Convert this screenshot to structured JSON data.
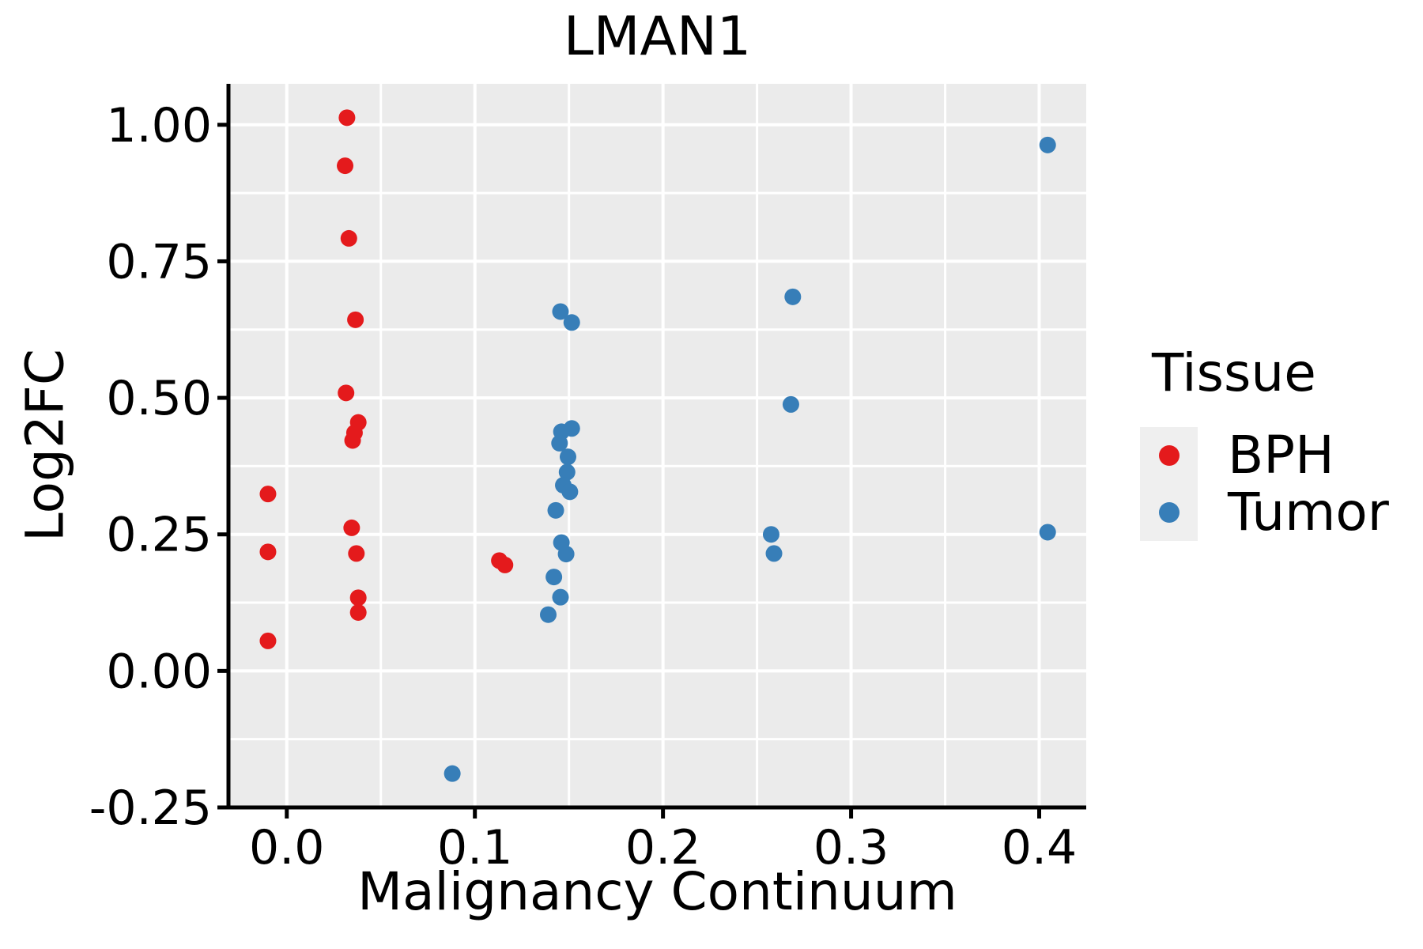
{
  "chart_data": {
    "type": "scatter",
    "title": "LMAN1",
    "xlabel": "Malignancy Continuum",
    "ylabel": "Log2FC",
    "xlim": [
      -0.031,
      0.425
    ],
    "ylim": [
      -0.25,
      1.075
    ],
    "grid": true,
    "panel_bg": "#EBEBEB",
    "grid_color": "#FFFFFF",
    "x_minor_step": 0.05,
    "y_minor_step": 0.125,
    "xticks": {
      "values": [
        0.0,
        0.1,
        0.2,
        0.3,
        0.4
      ],
      "labels": [
        "0.0",
        "0.1",
        "0.2",
        "0.3",
        "0.4"
      ]
    },
    "yticks": {
      "values": [
        -0.25,
        0.0,
        0.25,
        0.5,
        0.75,
        1.0
      ],
      "labels": [
        "-0.25",
        "0.00",
        "0.25",
        "0.50",
        "0.75",
        "1.00"
      ]
    },
    "legend": {
      "title": "Tissue",
      "position": "right",
      "items": [
        {
          "label": "BPH",
          "color": "#E41A1C"
        },
        {
          "label": "Tumor",
          "color": "#377EB8"
        }
      ]
    },
    "series": [
      {
        "name": "BPH",
        "color": "#E41A1C",
        "points": [
          [
            -0.01,
            0.324
          ],
          [
            -0.01,
            0.218
          ],
          [
            -0.01,
            0.055
          ],
          [
            0.032,
            1.013
          ],
          [
            0.031,
            0.925
          ],
          [
            0.033,
            0.792
          ],
          [
            0.0365,
            0.643
          ],
          [
            0.0315,
            0.509
          ],
          [
            0.038,
            0.455
          ],
          [
            0.036,
            0.436
          ],
          [
            0.035,
            0.422
          ],
          [
            0.0345,
            0.262
          ],
          [
            0.037,
            0.215
          ],
          [
            0.038,
            0.134
          ],
          [
            0.038,
            0.107
          ],
          [
            0.113,
            0.202
          ],
          [
            0.116,
            0.194
          ]
        ]
      },
      {
        "name": "Tumor",
        "color": "#377EB8",
        "points": [
          [
            0.088,
            -0.188
          ],
          [
            0.1455,
            0.658
          ],
          [
            0.1515,
            0.638
          ],
          [
            0.1515,
            0.444
          ],
          [
            0.146,
            0.438
          ],
          [
            0.145,
            0.417
          ],
          [
            0.1495,
            0.392
          ],
          [
            0.149,
            0.364
          ],
          [
            0.147,
            0.34
          ],
          [
            0.1505,
            0.328
          ],
          [
            0.143,
            0.294
          ],
          [
            0.146,
            0.235
          ],
          [
            0.1485,
            0.214
          ],
          [
            0.142,
            0.172
          ],
          [
            0.1455,
            0.135
          ],
          [
            0.139,
            0.103
          ],
          [
            0.2575,
            0.25
          ],
          [
            0.259,
            0.215
          ],
          [
            0.269,
            0.685
          ],
          [
            0.268,
            0.488
          ],
          [
            0.4045,
            0.963
          ],
          [
            0.4045,
            0.254
          ]
        ]
      }
    ]
  }
}
